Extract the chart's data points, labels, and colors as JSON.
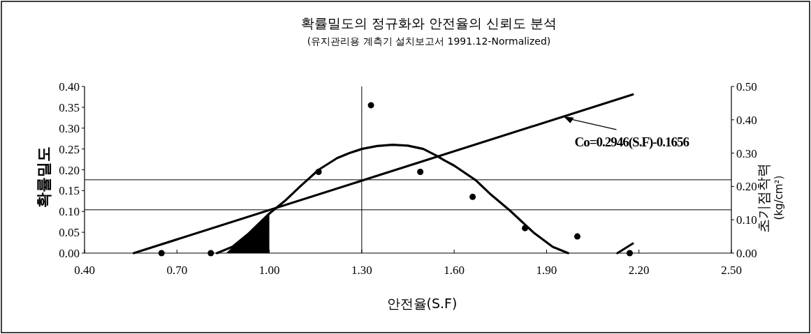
{
  "chart_data": {
    "type": "line",
    "title": "확률밀도의 정규화와 안전율의 신뢰도 분석",
    "subtitle": "(유지관리용 계측기 설치보고서 1991.12-Normalized)",
    "xlabel": "안전율(S.F)",
    "ylabel": "확률밀도",
    "y2label": "초기점착력\n(kg/cm²)",
    "xlim": [
      0.4,
      2.5
    ],
    "xticks": [
      {
        "value": 0.4,
        "label": "0.40"
      },
      {
        "value": 0.7,
        "label": "0.70"
      },
      {
        "value": 1.0,
        "label": "1.00"
      },
      {
        "value": 1.3,
        "label": "1.30"
      },
      {
        "value": 1.6,
        "label": "1.60"
      },
      {
        "value": 1.9,
        "label": "1.90"
      },
      {
        "value": 2.2,
        "label": "2.20"
      },
      {
        "value": 2.5,
        "label": "2.50"
      }
    ],
    "ylim": [
      0,
      0.4
    ],
    "yticks": [
      {
        "value": 0,
        "label": "0.00"
      },
      {
        "value": 0.05,
        "label": "0.05"
      },
      {
        "value": 0.1,
        "label": "0.10"
      },
      {
        "value": 0.15,
        "label": "0.15"
      },
      {
        "value": 0.2,
        "label": "0.20"
      },
      {
        "value": 0.25,
        "label": "0.25"
      },
      {
        "value": 0.3,
        "label": "0.30"
      },
      {
        "value": 0.35,
        "label": "0.35"
      },
      {
        "value": 0.4,
        "label": "0.40"
      }
    ],
    "y2lim": [
      0,
      0.5
    ],
    "y2ticks": [
      {
        "value": 0,
        "label": "0.00"
      },
      {
        "value": 0.1,
        "label": "0.10"
      },
      {
        "value": 0.2,
        "label": "0.20"
      },
      {
        "value": 0.3,
        "label": "0.30"
      },
      {
        "value": 0.4,
        "label": "0.40"
      },
      {
        "value": 0.5,
        "label": "0.50"
      }
    ],
    "grid": false,
    "series": [
      {
        "type": "scatter",
        "color": "#000000",
        "marker": "circle",
        "x": [
          0.65,
          0.81,
          1.16,
          1.33,
          1.49,
          1.66,
          1.83,
          2.0,
          2.17
        ],
        "values": [
          0.0,
          0.0,
          0.195,
          0.355,
          0.195,
          0.135,
          0.06,
          0.04,
          0.0
        ]
      },
      {
        "color": "#000000",
        "marker": "none",
        "line_style": "solid",
        "x": [
          0.83,
          0.88,
          0.93,
          1.0,
          1.05,
          1.1,
          1.16,
          1.22,
          1.26,
          1.3,
          1.35,
          1.4,
          1.45,
          1.5,
          1.54,
          1.57,
          1.6,
          1.67,
          1.72,
          1.78,
          1.86,
          1.92,
          1.97,
          2.05,
          2.13,
          2.18
        ],
        "values": [
          0.0,
          0.015,
          0.045,
          0.095,
          0.125,
          0.16,
          0.2,
          0.228,
          0.24,
          0.25,
          0.257,
          0.26,
          0.258,
          0.25,
          0.235,
          0.222,
          0.21,
          0.175,
          0.14,
          0.103,
          0.048,
          0.015,
          0.0,
          null,
          0.0,
          0.023
        ]
      },
      {
        "type": "area",
        "color": "#000000",
        "x": [
          0.86,
          0.9,
          0.95,
          1.0
        ],
        "values": [
          0.0,
          0.028,
          0.06,
          0.095
        ]
      },
      {
        "type": "line",
        "axis": "y2",
        "color": "#000000",
        "marker": "none",
        "line_style": "solid",
        "x": [
          0.56,
          2.18
        ],
        "values": [
          0.0,
          0.476
        ]
      }
    ],
    "ref_lines": [
      {
        "axis": "y2",
        "value": 0.13,
        "color": "#000000"
      },
      {
        "axis": "y2",
        "value": 0.22,
        "color": "#000000"
      },
      {
        "axis": "x",
        "value": 1.3,
        "color": "#000000"
      }
    ],
    "annotations": [
      {
        "text": "Co=0.2946(S.F)-0.1656",
        "x": 1.95,
        "y": 0.33
      }
    ]
  }
}
